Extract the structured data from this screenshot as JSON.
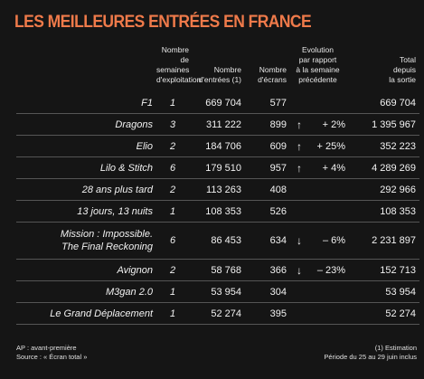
{
  "header": {
    "title": "LES MEILLEURES ENTRÉES EN FRANCE"
  },
  "table": {
    "columns": [
      "",
      "Nombre\nde semaines\nd'exploitation",
      "Nombre\nd'entrées (1)",
      "Nombre\nd'écrans",
      "Evolution\npar rapport\nà la semaine\nprécédente",
      "Total\ndepuis\nla sortie"
    ],
    "rows": [
      [
        "F1",
        "1",
        "669 704",
        "577",
        "",
        "669 704"
      ],
      [
        "Dragons",
        "3",
        "311 222",
        "899",
        "+ 2%",
        "1 395 967"
      ],
      [
        "Elio",
        "2",
        "184 706",
        "609",
        "+ 25%",
        "352 223"
      ],
      [
        "Lilo & Stitch",
        "6",
        "179 510",
        "957",
        "+ 4%",
        "4 289 269"
      ],
      [
        "28 ans plus tard",
        "2",
        "113 263",
        "408",
        "",
        "292 966"
      ],
      [
        "13 jours, 13 nuits",
        "1",
        "108 353",
        "526",
        "",
        "108 353"
      ],
      [
        "Mission : Impossible.\nThe Final Reckoning",
        "6",
        "86 453",
        "634",
        "– 6%",
        "2 231 897"
      ],
      [
        "Avignon",
        "2",
        "58 768",
        "366",
        "– 23%",
        "152 713"
      ],
      [
        "M3gan 2.0",
        "1",
        "53 954",
        "304",
        "",
        "53 954"
      ],
      [
        "Le Grand Déplacement",
        "1",
        "52 274",
        "395",
        "",
        "52 274"
      ]
    ]
  },
  "footer": {
    "left": [
      "AP : avant-première",
      "Source : « Écran total »"
    ],
    "right": [
      "(1) Estimation",
      "Période du 25 au 29 juin inclus"
    ]
  }
}
